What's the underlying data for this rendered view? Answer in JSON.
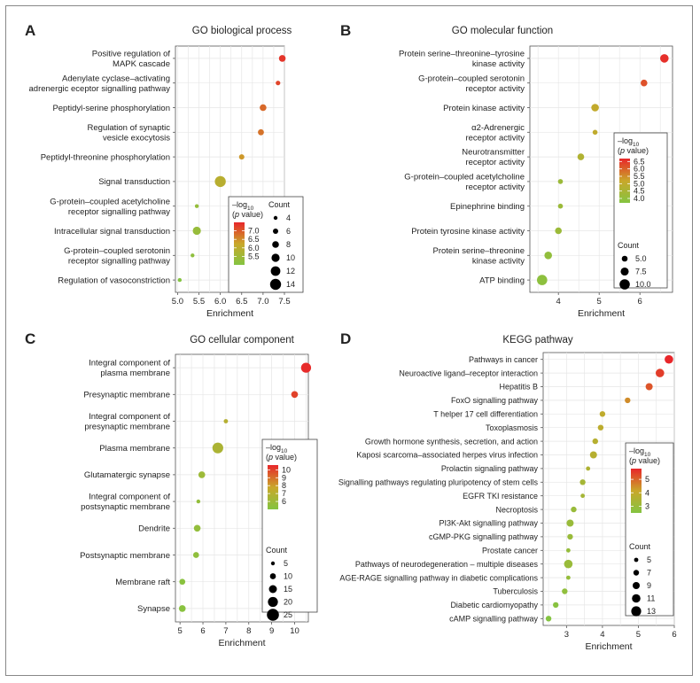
{
  "chart_data": [
    {
      "type": "scatter",
      "panel_letter": "A",
      "title": "GO biological process",
      "xlabel": "Enrichment",
      "xlim": [
        4.95,
        7.5
      ],
      "xticks": [
        5.0,
        5.5,
        6.0,
        6.5,
        7.0,
        7.5
      ],
      "xtick_labels": [
        "5.0",
        "5.5",
        "6.0",
        "6.5",
        "7.0",
        "7.5"
      ],
      "categories": [
        [
          "Positive regulation of",
          "MAPK cascade"
        ],
        [
          "Adenylate cyclase–activating",
          "adrenergic eceptor signalling pathway"
        ],
        [
          "Peptidyl-serine phosphorylation"
        ],
        [
          "Regulation of synaptic",
          "vesicle exocytosis"
        ],
        [
          "Peptidyl-threonine phosphorylation"
        ],
        [
          "Signal transduction"
        ],
        [
          "G-protein–coupled acetylcholine",
          "receptor signalling pathway"
        ],
        [
          "Intracellular signal transduction"
        ],
        [
          "G-protein–coupled serotonin",
          "receptor signalling pathway"
        ],
        [
          "Regulation of vasoconstriction"
        ]
      ],
      "enrichment": [
        7.45,
        7.35,
        7.0,
        6.95,
        6.5,
        6.0,
        5.45,
        5.45,
        5.35,
        5.05
      ],
      "count": [
        8,
        5,
        8,
        7,
        6,
        14,
        4,
        10,
        4,
        4
      ],
      "neg_log10_p": [
        7.35,
        7.2,
        6.85,
        6.75,
        6.4,
        5.95,
        5.3,
        5.35,
        5.2,
        5.0
      ],
      "color_legend": {
        "title_line1": "–log",
        "title_sub": "10",
        "title_line2_a": "(",
        "title_line2_p": "p",
        "title_line2_b": " value)",
        "min": 5.0,
        "max": 7.5,
        "ticks": [
          "7.0",
          "6.5",
          "6.0",
          "5.5"
        ],
        "tick_values": [
          7.0,
          6.5,
          6.0,
          5.5
        ]
      },
      "size_legend": {
        "title": "Count",
        "labels": [
          "4",
          "6",
          "8",
          "10",
          "12",
          "14"
        ],
        "values": [
          4,
          6,
          8,
          10,
          12,
          14
        ],
        "range": [
          4,
          14
        ]
      }
    },
    {
      "type": "scatter",
      "panel_letter": "B",
      "title": "GO molecular function",
      "xlabel": "Enrichment",
      "xlim": [
        3.3,
        6.8
      ],
      "xticks": [
        4,
        5,
        6
      ],
      "xtick_labels": [
        "4",
        "5",
        "6"
      ],
      "categories": [
        [
          "Protein serine–threonine–tyrosine",
          "kinase activity"
        ],
        [
          "G-protein–coupled serotonin",
          "receptor activity"
        ],
        [
          "Protein kinase activity"
        ],
        [
          "α2-Adrenergic",
          "receptor activity"
        ],
        [
          "Neurotransmitter",
          "receptor activity"
        ],
        [
          "G-protein–coupled acetylcholine",
          "receptor activity"
        ],
        [
          "Epinephrine binding"
        ],
        [
          "Protein tyrosine kinase activity"
        ],
        [
          "Protein serine–threonine",
          "kinase activity"
        ],
        [
          "ATP binding"
        ]
      ],
      "enrichment": [
        6.6,
        6.1,
        4.9,
        4.9,
        4.55,
        4.05,
        4.05,
        4.0,
        3.75,
        3.6
      ],
      "count": [
        8,
        6,
        7,
        4,
        6,
        4,
        4,
        6,
        7,
        10
      ],
      "neg_log10_p": [
        6.6,
        6.2,
        5.05,
        5.0,
        4.65,
        4.2,
        4.2,
        4.2,
        4.0,
        3.9
      ],
      "color_legend": {
        "title_line1": "–log",
        "title_sub": "10",
        "title_line2_a": "(",
        "title_line2_p": "p",
        "title_line2_b": " value)",
        "min": 3.7,
        "max": 6.7,
        "ticks": [
          "6.5",
          "6.0",
          "5.5",
          "5.0",
          "4.5",
          "4.0"
        ],
        "tick_values": [
          6.5,
          6.0,
          5.5,
          5.0,
          4.5,
          4.0
        ]
      },
      "size_legend": {
        "title": "Count",
        "labels": [
          "5.0",
          "7.5",
          "10.0"
        ],
        "values": [
          5,
          7.5,
          10
        ],
        "range": [
          4,
          10
        ]
      }
    },
    {
      "type": "scatter",
      "panel_letter": "C",
      "title": "GO cellular component",
      "xlabel": "Enrichment",
      "xlim": [
        4.8,
        10.6
      ],
      "xticks": [
        5,
        6,
        7,
        8,
        9,
        10
      ],
      "xtick_labels": [
        "5",
        "6",
        "7",
        "8",
        "9",
        "10"
      ],
      "categories": [
        [
          "Integral component of",
          "plasma membrane"
        ],
        [
          "Presynaptic membrane"
        ],
        [
          "Integral component of",
          "presynaptic membrane"
        ],
        [
          "Plasma membrane"
        ],
        [
          "Glutamatergic synapse"
        ],
        [
          "Integral component of",
          "postsynaptic membrane"
        ],
        [
          "Dendrite"
        ],
        [
          "Postsynaptic membrane"
        ],
        [
          "Membrane raft"
        ],
        [
          "Synapse"
        ]
      ],
      "enrichment": [
        10.5,
        10.0,
        7.0,
        6.65,
        5.95,
        5.8,
        5.75,
        5.7,
        5.1,
        5.1
      ],
      "count": [
        20,
        12,
        6,
        22,
        12,
        5,
        12,
        10,
        10,
        12
      ],
      "neg_log10_p": [
        10.5,
        10.0,
        7.0,
        6.6,
        6.0,
        5.6,
        5.6,
        5.5,
        5.2,
        5.2
      ],
      "color_legend": {
        "title_line1": "–log",
        "title_sub": "10",
        "title_line2_a": "(",
        "title_line2_p": "p",
        "title_line2_b": " value)",
        "min": 5.0,
        "max": 10.6,
        "ticks": [
          "10",
          "9",
          "8",
          "7",
          "6"
        ],
        "tick_values": [
          10,
          9,
          8,
          7,
          6
        ]
      },
      "size_legend": {
        "title": "Count",
        "labels": [
          "5",
          "10",
          "15",
          "20",
          "25"
        ],
        "values": [
          5,
          10,
          15,
          20,
          25
        ],
        "range": [
          5,
          25
        ]
      }
    },
    {
      "type": "scatter",
      "panel_letter": "D",
      "title": "KEGG pathway",
      "xlabel": "Enrichment",
      "xlim": [
        2.35,
        6.0
      ],
      "xticks": [
        3,
        4,
        5,
        6
      ],
      "xtick_labels": [
        "3",
        "4",
        "5",
        "6"
      ],
      "categories": [
        [
          "Pathways in cancer"
        ],
        [
          "Neuroactive ligand–receptor interaction"
        ],
        [
          "Hepatitis B"
        ],
        [
          "FoxO signalling pathway"
        ],
        [
          "T helper 17 cell differentiation"
        ],
        [
          "Toxoplasmosis"
        ],
        [
          "Growth hormone synthesis, secretion, and action"
        ],
        [
          "Kaposi scarcoma–associated herpes virus infection"
        ],
        [
          "Prolactin signaling pathway"
        ],
        [
          "Signalling pathways regulating pluripotency of stem cells"
        ],
        [
          "EGFR TKI resistance"
        ],
        [
          "Necroptosis"
        ],
        [
          "PI3K-Akt signalling pathway"
        ],
        [
          "cGMP-PKG signalling pathway"
        ],
        [
          "Prostate cancer"
        ],
        [
          "Pathways of neurodegeneration – multiple diseases"
        ],
        [
          "AGE-RAGE signalling pathway in diabetic complications"
        ],
        [
          "Tuberculosis"
        ],
        [
          "Diabetic cardiomyopathy"
        ],
        [
          "cAMP signalling pathway"
        ]
      ],
      "enrichment": [
        5.85,
        5.6,
        5.3,
        4.7,
        4.0,
        3.95,
        3.8,
        3.75,
        3.6,
        3.45,
        3.45,
        3.2,
        3.1,
        3.1,
        3.05,
        3.05,
        3.05,
        2.95,
        2.7,
        2.5
      ],
      "count": [
        11,
        11,
        9,
        7,
        7,
        7,
        7,
        9,
        5,
        7,
        5,
        7,
        9,
        7,
        5,
        11,
        5,
        7,
        7,
        7
      ],
      "neg_log10_p": [
        5.8,
        5.5,
        5.2,
        4.5,
        3.9,
        3.85,
        3.7,
        3.7,
        3.5,
        3.3,
        3.3,
        3.0,
        3.0,
        3.0,
        2.9,
        3.0,
        2.9,
        2.8,
        2.6,
        2.5
      ],
      "color_legend": {
        "title_line1": "–log",
        "title_sub": "10",
        "title_line2_a": "(",
        "title_line2_p": "p",
        "title_line2_b": " value)",
        "min": 2.5,
        "max": 5.8,
        "ticks": [
          "5",
          "4",
          "3"
        ],
        "tick_values": [
          5,
          4,
          3
        ]
      },
      "size_legend": {
        "title": "Count",
        "labels": [
          "5",
          "7",
          "9",
          "11",
          "13"
        ],
        "values": [
          5,
          7,
          9,
          11,
          13
        ],
        "range": [
          5,
          13
        ]
      }
    }
  ]
}
